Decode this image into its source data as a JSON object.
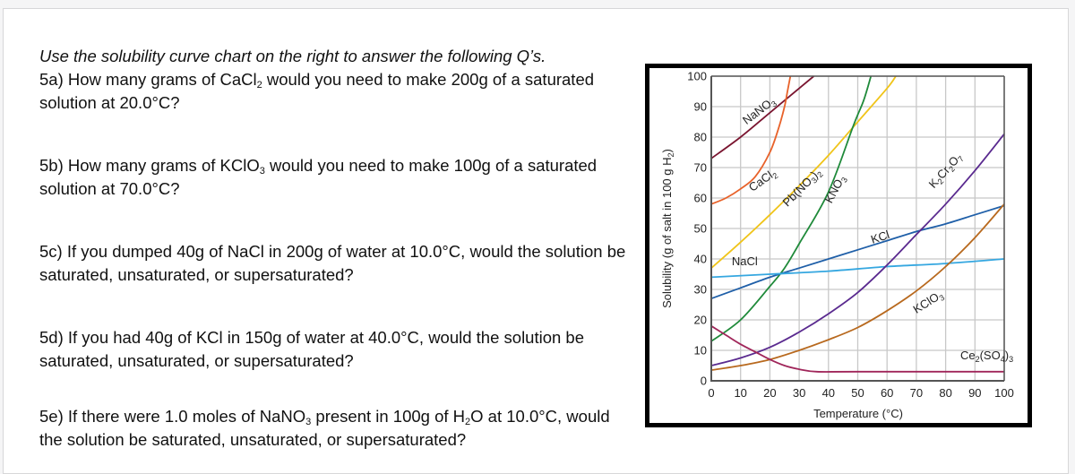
{
  "questions": {
    "intro": "Use the solubility curve chart on the right to answer the following Q’s.",
    "items": [
      {
        "id": "5a",
        "parts": [
          "5a) How many grams of CaCl",
          "2",
          " would you need to make 200g of a saturated solution at 20.0°C?"
        ]
      },
      {
        "id": "5b",
        "parts": [
          "5b) How many grams of KClO",
          "3",
          " would you need to make 100g of a saturated solution at 70.0°C?"
        ]
      },
      {
        "id": "5c",
        "text": "5c) If you dumped 40g of NaCl in 200g of water at 10.0°C, would the solution be saturated, unsaturated, or supersaturated?"
      },
      {
        "id": "5d",
        "text": "5d) If you had 40g of KCl in 150g of water at 40.0°C, would the solution be saturated, unsaturated, or supersaturated?"
      },
      {
        "id": "5e",
        "parts": [
          "5e) If there were 1.0 moles of NaNO",
          "3",
          " present in 100g of H",
          "2",
          "O at 10.0°C, would the solution be saturated, unsaturated, or supersaturated?"
        ]
      }
    ]
  },
  "chart_data": {
    "type": "line",
    "title": "",
    "xlabel": "Temperature (°C)",
    "ylabel": "Solubility (g of salt in 100 g H2O)",
    "xlim": [
      0,
      100
    ],
    "ylim": [
      0,
      100
    ],
    "xticks": [
      0,
      10,
      20,
      30,
      40,
      50,
      60,
      70,
      80,
      90,
      100
    ],
    "yticks": [
      0,
      10,
      20,
      30,
      40,
      50,
      60,
      70,
      80,
      90,
      100
    ],
    "grid": true,
    "legend": "inline labels on curves",
    "series": [
      {
        "name": "NaNO3",
        "label_main": "NaNO",
        "label_sub": "3",
        "color": "#7a1530",
        "x": [
          0,
          10,
          20,
          30,
          35
        ],
        "y": [
          73,
          80,
          88,
          96,
          100
        ]
      },
      {
        "name": "CaCl2",
        "label_main": "CaCl",
        "label_sub": "2",
        "color": "#e8622a",
        "x": [
          0,
          5,
          10,
          15,
          20,
          23,
          25,
          26,
          27
        ],
        "y": [
          58,
          60,
          63,
          67,
          75,
          83,
          90,
          95,
          100
        ]
      },
      {
        "name": "Pb(NO3)2",
        "label_main": "Pb(NO3)2",
        "color": "#f0c419",
        "x": [
          0,
          10,
          20,
          30,
          40,
          50,
          60,
          63
        ],
        "y": [
          37,
          45.5,
          54.5,
          64,
          74,
          85,
          96,
          100
        ]
      },
      {
        "name": "KNO3",
        "label_main": "KNO",
        "label_sub": "3",
        "color": "#1f8a3a",
        "x": [
          0,
          10,
          20,
          25,
          30,
          40,
          48.6,
          52,
          54.5
        ],
        "y": [
          13,
          20,
          31,
          37,
          45,
          62,
          84,
          92,
          100
        ]
      },
      {
        "name": "KCl",
        "label_main": "KCl",
        "color": "#1f5fa8",
        "x": [
          0,
          10,
          20,
          30,
          40,
          50,
          60,
          70,
          80,
          90,
          100
        ],
        "y": [
          27,
          30.5,
          34,
          37,
          40,
          43,
          46,
          49,
          51.5,
          54.5,
          57.5
        ]
      },
      {
        "name": "NaCl",
        "label_main": "NaCl",
        "color": "#35a7e0",
        "x": [
          0,
          20,
          40,
          60,
          80,
          100
        ],
        "y": [
          34,
          35,
          36,
          37.5,
          38.5,
          40
        ]
      },
      {
        "name": "K2Cr2O7",
        "label_main": "K2Cr2O7",
        "color": "#5a2a8f",
        "x": [
          0,
          10,
          20,
          30,
          40,
          50,
          60,
          70,
          80,
          90,
          100
        ],
        "y": [
          5,
          7.5,
          11,
          16,
          22,
          29,
          38,
          48,
          58,
          69,
          81
        ]
      },
      {
        "name": "KClO3",
        "label_main": "KClO",
        "label_sub": "3",
        "color": "#b8691e",
        "x": [
          0,
          10,
          20,
          30,
          40,
          50,
          60,
          70,
          80,
          90,
          100
        ],
        "y": [
          3.5,
          5,
          7,
          10,
          13.5,
          17.5,
          23,
          29.5,
          37.5,
          47,
          58
        ]
      },
      {
        "name": "Ce2(SO4)3",
        "label_main": "Ce2(SO4)3",
        "color": "#a0265a",
        "x": [
          0,
          5,
          10,
          15,
          20,
          25,
          30,
          36,
          50,
          100
        ],
        "y": [
          18,
          15,
          12,
          9.5,
          7,
          5,
          3.8,
          3,
          3,
          3
        ]
      }
    ]
  }
}
